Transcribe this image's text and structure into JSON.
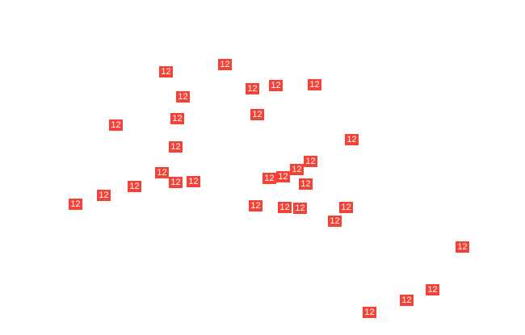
{
  "marker_color": "#f44336",
  "markers": [
    {
      "label": "12"
    },
    {
      "label": "12"
    },
    {
      "label": "12"
    },
    {
      "label": "12"
    },
    {
      "label": "12"
    },
    {
      "label": "12"
    },
    {
      "label": "12"
    },
    {
      "label": "12"
    },
    {
      "label": "12"
    },
    {
      "label": "12"
    },
    {
      "label": "12"
    },
    {
      "label": "12"
    },
    {
      "label": "12"
    },
    {
      "label": "12"
    },
    {
      "label": "12"
    },
    {
      "label": "12"
    },
    {
      "label": "12"
    },
    {
      "label": "12"
    },
    {
      "label": "12"
    },
    {
      "label": "12"
    },
    {
      "label": "12"
    },
    {
      "label": "12"
    },
    {
      "label": "12"
    },
    {
      "label": "12"
    },
    {
      "label": "12"
    },
    {
      "label": "12"
    },
    {
      "label": "12"
    },
    {
      "label": "12"
    },
    {
      "label": "12"
    },
    {
      "label": "12"
    },
    {
      "label": "12"
    }
  ]
}
